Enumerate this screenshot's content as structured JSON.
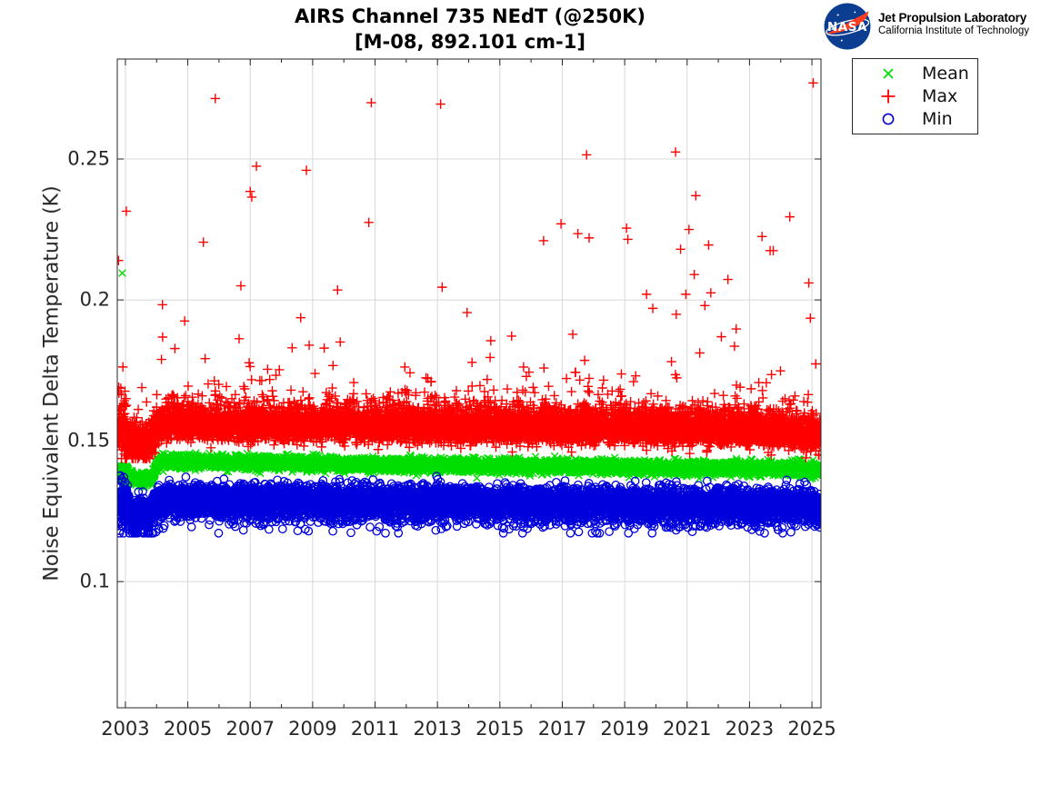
{
  "header": {
    "title_line1": "AIRS Channel 735 NEdT (@250K)",
    "title_line2": "[M-08, 892.101 cm-1]"
  },
  "logo": {
    "nasa_text": "NASA",
    "org_name": "Jet Propulsion Laboratory",
    "org_affiliation": "California Institute of Technology",
    "meatball_blue": "#0B3D91",
    "swoosh_red": "#FC3D21"
  },
  "chart_data": {
    "type": "scatter",
    "title": "AIRS Channel 735 NEdT (@250K) [M-08, 892.101 cm-1]",
    "xlabel": "",
    "ylabel": "Noise Equivalent Delta Temperature (K)",
    "xlim": [
      2002.74,
      2025.29
    ],
    "ylim": [
      0.0552,
      0.2855
    ],
    "xticks": [
      2003,
      2005,
      2007,
      2009,
      2011,
      2013,
      2015,
      2017,
      2019,
      2021,
      2023,
      2025
    ],
    "xticks_minor": [
      2004,
      2006,
      2008,
      2010,
      2012,
      2014,
      2016,
      2018,
      2020,
      2022,
      2024
    ],
    "xtick_labels": [
      "2003",
      "2005",
      "2007",
      "2009",
      "2011",
      "2013",
      "2015",
      "2017",
      "2019",
      "2021",
      "2023",
      "2025"
    ],
    "yticks": [
      0.1,
      0.15,
      0.2,
      0.25
    ],
    "ytick_labels": [
      "0.1",
      "0.15",
      "0.2",
      "0.25"
    ],
    "grid": true,
    "legend_position": "outside-top-right",
    "n_points": 8200,
    "time_range": [
      2002.75,
      2025.28
    ],
    "style": {
      "background": "#ffffff",
      "grid_color": "#d8d8d8",
      "axis_color": "#262626",
      "tick_label_color": "#262626",
      "tick_label_size": 21
    },
    "series": [
      {
        "name": "Mean",
        "marker": "x",
        "color": "#00dd00",
        "band_center": [
          [
            2002.74,
            0.1388
          ],
          [
            2003.0,
            0.1382
          ],
          [
            2003.15,
            0.1368
          ],
          [
            2003.6,
            0.1362
          ],
          [
            2003.85,
            0.1372
          ],
          [
            2004.1,
            0.1428
          ],
          [
            2004.6,
            0.1426
          ],
          [
            2006,
            0.1424
          ],
          [
            2009,
            0.1419
          ],
          [
            2012,
            0.1414
          ],
          [
            2015,
            0.1411
          ],
          [
            2018,
            0.1407
          ],
          [
            2021,
            0.1404
          ],
          [
            2023,
            0.1402
          ],
          [
            2024.5,
            0.14
          ],
          [
            2025.28,
            0.1394
          ]
        ],
        "spread": {
          "sigma": 0.0011,
          "asym_up": 1.0,
          "asym_down": 1.0
        },
        "early": {
          "until": 2003.1,
          "factor": 1.4
        },
        "wobble": {
          "amp": 0.00025,
          "period": 0.5
        },
        "clip": [
          0.1335,
          0.215
        ],
        "outliers": [
          [
            2002.9,
            0.2095
          ],
          [
            2006.9,
            0.1455
          ],
          [
            2009.13,
            0.145
          ],
          [
            2016.76,
            0.1445
          ]
        ]
      },
      {
        "name": "Max",
        "marker": "+",
        "color": "#ff0000",
        "band_center": [
          [
            2002.74,
            0.1535
          ],
          [
            2003.0,
            0.1515
          ],
          [
            2003.15,
            0.1487
          ],
          [
            2003.6,
            0.1478
          ],
          [
            2003.85,
            0.1495
          ],
          [
            2004.1,
            0.1562
          ],
          [
            2004.6,
            0.1558
          ],
          [
            2006,
            0.1556
          ],
          [
            2009,
            0.1551
          ],
          [
            2012,
            0.1548
          ],
          [
            2015,
            0.1546
          ],
          [
            2018,
            0.1542
          ],
          [
            2021,
            0.1538
          ],
          [
            2023,
            0.1536
          ],
          [
            2024.5,
            0.1528
          ],
          [
            2025.28,
            0.1508
          ]
        ],
        "spread": {
          "sigma": 0.0029,
          "asym_up": 1.3,
          "asym_down": 0.85
        },
        "early": {
          "until": 2003.1,
          "factor": 1.6
        },
        "wobble": {
          "amp": 0.0004,
          "period": 0.62
        },
        "tail": {
          "side": "up",
          "p": 0.02,
          "offset": 0.005,
          "mean": 0.0095
        },
        "fringe": {
          "side": "up",
          "p": 0.07,
          "mean": 0.0032
        },
        "early_fringe": {
          "until": 2003.05,
          "p": 0.3,
          "mean": 0.0045
        },
        "clip": [
          0.1437,
          0.262
        ],
        "outliers": [
          [
            2002.78,
            0.214
          ],
          [
            2003.03,
            0.2315
          ],
          [
            2004.9,
            0.1925
          ],
          [
            2005.5,
            0.2205
          ],
          [
            2005.88,
            0.2715
          ],
          [
            2006.7,
            0.205
          ],
          [
            2007.0,
            0.2385
          ],
          [
            2007.05,
            0.2365
          ],
          [
            2008.8,
            0.246
          ],
          [
            2009.8,
            0.2035
          ],
          [
            2010.8,
            0.2275
          ],
          [
            2010.88,
            0.27
          ],
          [
            2013.1,
            0.2695
          ],
          [
            2013.15,
            0.2045
          ],
          [
            2013.95,
            0.1955
          ],
          [
            2016.4,
            0.221
          ],
          [
            2016.96,
            0.227
          ],
          [
            2017.5,
            0.2235
          ],
          [
            2017.78,
            0.2515
          ],
          [
            2017.86,
            0.222
          ],
          [
            2019.06,
            0.2255
          ],
          [
            2019.1,
            0.2215
          ],
          [
            2019.7,
            0.202
          ],
          [
            2019.9,
            0.197
          ],
          [
            2020.63,
            0.2525
          ],
          [
            2020.79,
            0.218
          ],
          [
            2020.96,
            0.202
          ],
          [
            2021.06,
            0.225
          ],
          [
            2021.23,
            0.209
          ],
          [
            2021.28,
            0.237
          ],
          [
            2021.57,
            0.198
          ],
          [
            2021.69,
            0.2195
          ],
          [
            2021.76,
            0.2025
          ],
          [
            2023.4,
            0.2225
          ],
          [
            2023.66,
            0.2175
          ],
          [
            2023.76,
            0.2175
          ],
          [
            2024.29,
            0.2295
          ],
          [
            2024.9,
            0.206
          ],
          [
            2024.95,
            0.1935
          ],
          [
            2025.04,
            0.277
          ]
        ]
      },
      {
        "name": "Min",
        "marker": "o",
        "color": "#0000dd",
        "band_center": [
          [
            2002.74,
            0.1282
          ],
          [
            2003.0,
            0.1276
          ],
          [
            2003.15,
            0.1242
          ],
          [
            2003.6,
            0.1238
          ],
          [
            2003.85,
            0.125
          ],
          [
            2004.1,
            0.1296
          ],
          [
            2004.6,
            0.1293
          ],
          [
            2006,
            0.1292
          ],
          [
            2009,
            0.129
          ],
          [
            2012,
            0.1287
          ],
          [
            2015,
            0.1284
          ],
          [
            2018,
            0.1281
          ],
          [
            2021,
            0.1278
          ],
          [
            2023,
            0.1276
          ],
          [
            2024.5,
            0.1274
          ],
          [
            2025.28,
            0.1266
          ]
        ],
        "spread": {
          "sigma": 0.0027,
          "asym_up": 0.9,
          "asym_down": 1.25
        },
        "early": {
          "until": 2003.1,
          "factor": 1.45
        },
        "wobble": {
          "amp": 0.0006,
          "period": 0.45
        },
        "tail": {
          "side": "down",
          "p": 0.03,
          "offset": 0.0018,
          "mean": 0.0022
        },
        "clip": [
          0.1172,
          0.14
        ],
        "outliers": []
      }
    ]
  }
}
